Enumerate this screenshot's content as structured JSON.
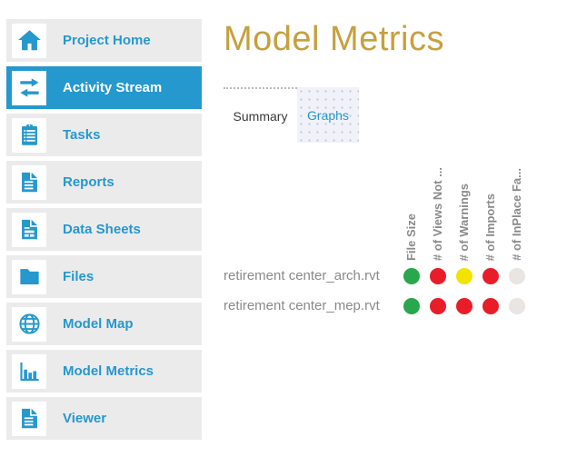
{
  "colors": {
    "accent_blue": "#2598CE",
    "title_gold": "#C6A03F",
    "sidebar_item_bg": "#EBEBEB",
    "status": {
      "green": "#28A74C",
      "red": "#E91D28",
      "yellow": "#F2E300",
      "gray": "#E8E5E2"
    }
  },
  "sidebar": {
    "items": [
      {
        "label": "Project Home",
        "icon": "home-icon",
        "active": false
      },
      {
        "label": "Activity Stream",
        "icon": "swap-arrows-icon",
        "active": true
      },
      {
        "label": "Tasks",
        "icon": "clipboard-icon",
        "active": false
      },
      {
        "label": "Reports",
        "icon": "document-lines-icon",
        "active": false
      },
      {
        "label": "Data Sheets",
        "icon": "document-table-icon",
        "active": false
      },
      {
        "label": "Files",
        "icon": "folder-icon",
        "active": false
      },
      {
        "label": "Model Map",
        "icon": "globe-icon",
        "active": false
      },
      {
        "label": "Model Metrics",
        "icon": "bar-chart-icon",
        "active": false
      },
      {
        "label": "Viewer",
        "icon": "document-lines-icon",
        "active": false
      }
    ]
  },
  "main": {
    "title": "Model Metrics",
    "tabs": [
      {
        "label": "Summary",
        "active": false
      },
      {
        "label": "Graphs",
        "active": true
      }
    ]
  },
  "matrix": {
    "columns": [
      "File Size",
      "# of Views Not ...",
      "# of Warnings",
      "# of Imports",
      "# of InPlace Fa..."
    ],
    "rows": [
      {
        "label": "retirement center_arch.rvt",
        "statuses": [
          "green",
          "red",
          "yellow",
          "red",
          "gray"
        ]
      },
      {
        "label": "retirement center_mep.rvt",
        "statuses": [
          "green",
          "red",
          "red",
          "red",
          "gray"
        ]
      }
    ]
  }
}
